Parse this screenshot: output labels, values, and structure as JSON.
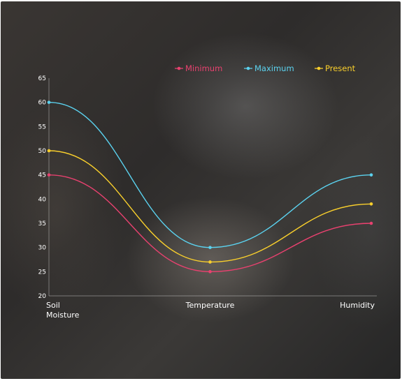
{
  "chart_data": {
    "type": "line",
    "categories": [
      [
        "Soil",
        "Moisture"
      ],
      [
        "Temperature"
      ],
      [
        "Humidity"
      ]
    ],
    "series": [
      {
        "name": "Minimum",
        "color": "#e8416f",
        "values": [
          45,
          25,
          35
        ]
      },
      {
        "name": "Maximum",
        "color": "#5bd2ef",
        "values": [
          60,
          30,
          45
        ]
      },
      {
        "name": "Present",
        "color": "#f9cf2c",
        "values": [
          50,
          27,
          39
        ]
      }
    ],
    "ylim": [
      20,
      65
    ],
    "yticks": [
      20,
      25,
      30,
      35,
      40,
      45,
      50,
      55,
      60,
      65
    ],
    "legend_position": "top-right",
    "grid": false,
    "smooth": true
  }
}
